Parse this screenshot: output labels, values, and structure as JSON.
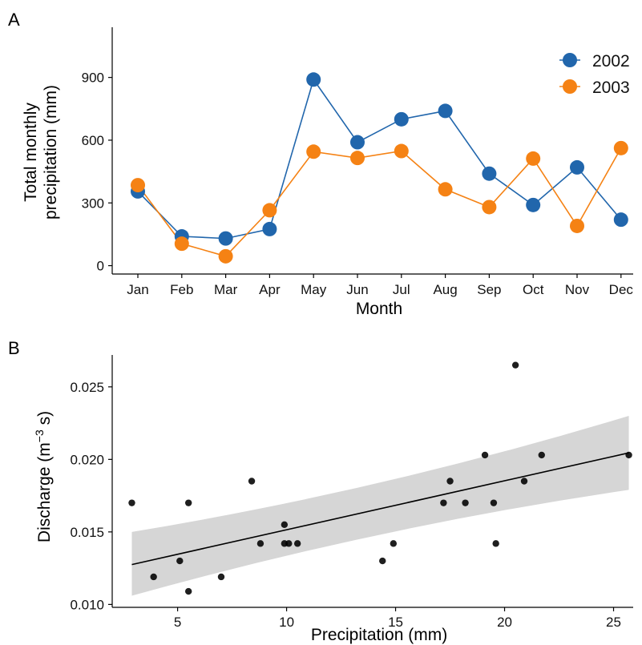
{
  "chart_data": [
    {
      "panel": "A",
      "type": "line",
      "title": "",
      "xlabel": "Month",
      "ylabel": [
        "Total monthly",
        "precipitation (mm)"
      ],
      "categories": [
        "Jan",
        "Feb",
        "Mar",
        "Apr",
        "May",
        "Jun",
        "Jul",
        "Aug",
        "Sep",
        "Oct",
        "Nov",
        "Dec"
      ],
      "series": [
        {
          "name": "2002",
          "color": "#2166ac",
          "values": [
            355,
            140,
            130,
            175,
            890,
            590,
            700,
            740,
            440,
            290,
            470,
            220
          ]
        },
        {
          "name": "2003",
          "color": "#f58214",
          "values": [
            385,
            105,
            45,
            265,
            545,
            515,
            548,
            365,
            280,
            512,
            190,
            562
          ]
        }
      ],
      "ylim": [
        -40,
        1140
      ],
      "yticks": [
        0,
        300,
        600,
        900
      ],
      "ytick_labels": [
        "0",
        "300",
        "600",
        "900"
      ],
      "grid": false,
      "legend_position": "top-right"
    },
    {
      "panel": "B",
      "type": "scatter",
      "title": "",
      "xlabel": "Precipitation (mm)",
      "ylabel": "Discharge (m",
      "ylabel_sup": "−3",
      "ylabel_end": " s)",
      "x": [
        2.9,
        3.9,
        5.1,
        5.5,
        5.5,
        7.0,
        8.4,
        8.8,
        9.9,
        9.9,
        10.1,
        10.5,
        14.4,
        14.9,
        17.2,
        17.5,
        18.2,
        19.1,
        19.5,
        19.6,
        20.5,
        20.9,
        21.7,
        25.7
      ],
      "y": [
        0.017,
        0.0119,
        0.013,
        0.0109,
        0.017,
        0.0119,
        0.0185,
        0.0142,
        0.0155,
        0.0142,
        0.0142,
        0.0142,
        0.013,
        0.0142,
        0.017,
        0.0185,
        0.017,
        0.0203,
        0.017,
        0.0142,
        0.0265,
        0.0185,
        0.0203,
        0.0203
      ],
      "fit": {
        "type": "linear",
        "x": [
          2.9,
          25.7
        ],
        "y": [
          0.01275,
          0.02045
        ],
        "ci_lower": [
          0.0106,
          0.0179
        ],
        "ci_upper": [
          0.015,
          0.023
        ],
        "ci_color": "#d6d6d6"
      },
      "xlim": [
        2.0,
        25.9
      ],
      "ylim": [
        0.0098,
        0.0272
      ],
      "xticks": [
        5,
        10,
        15,
        20,
        25
      ],
      "xtick_labels": [
        "5",
        "10",
        "15",
        "20",
        "25"
      ],
      "yticks": [
        0.01,
        0.015,
        0.02,
        0.025
      ],
      "ytick_labels": [
        "0.010",
        "0.015",
        "0.020",
        "0.025"
      ],
      "grid": false
    }
  ]
}
